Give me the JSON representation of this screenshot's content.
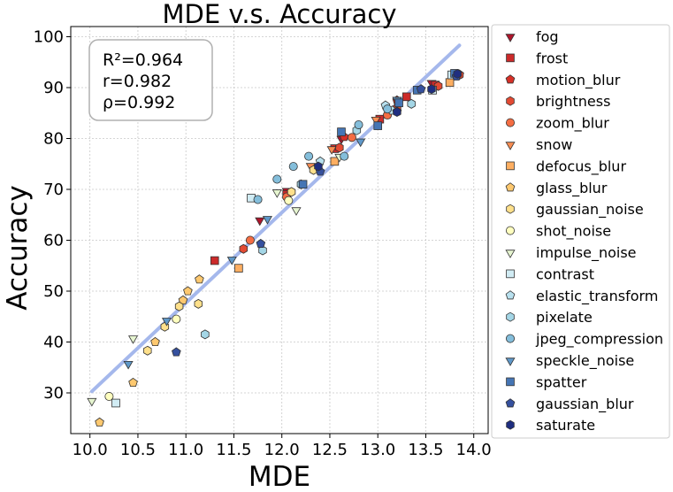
{
  "chart_data": {
    "type": "scatter",
    "title": "MDE  v.s.  Accuracy",
    "xlabel": "MDE",
    "ylabel": "Accuracy",
    "xlim": [
      9.8,
      14.15
    ],
    "ylim": [
      22,
      102
    ],
    "xticks": [
      "10.0",
      "10.5",
      "11.0",
      "11.5",
      "12.0",
      "12.5",
      "13.0",
      "13.5",
      "14.0"
    ],
    "yticks": [
      "30",
      "40",
      "50",
      "60",
      "70",
      "80",
      "90",
      "100"
    ],
    "grid": true,
    "legend_position": "outside-right",
    "stats": [
      "R²=0.964",
      "r=0.982",
      "ρ=0.992"
    ],
    "fit_line": {
      "x": [
        10.02,
        13.85
      ],
      "y": [
        30.3,
        98.3
      ],
      "color": "#a5b8ec"
    },
    "series": [
      {
        "name": "fog",
        "marker": "triangle-down",
        "color": "#b0152b",
        "points": [
          [
            11.77,
            64.0
          ],
          [
            12.05,
            69.8
          ],
          [
            12.62,
            80.0
          ],
          [
            13.0,
            83.8
          ],
          [
            13.56,
            91.0
          ]
        ]
      },
      {
        "name": "frost",
        "marker": "square",
        "color": "#cc2a2a",
        "points": [
          [
            11.3,
            56.0
          ],
          [
            12.05,
            69.0
          ],
          [
            12.55,
            78.0
          ],
          [
            13.02,
            83.8
          ],
          [
            13.3,
            88.2
          ],
          [
            13.6,
            90.5
          ]
        ]
      },
      {
        "name": "motion_blur",
        "marker": "pentagon",
        "color": "#d73027",
        "points": [
          [
            12.65,
            80.3
          ],
          [
            13.2,
            87.5
          ],
          [
            13.85,
            92.6
          ]
        ]
      },
      {
        "name": "brightness",
        "marker": "hexagon",
        "color": "#e34a33",
        "points": [
          [
            11.6,
            58.3
          ],
          [
            12.6,
            78.2
          ],
          [
            13.2,
            86.0
          ],
          [
            13.63,
            90.3
          ],
          [
            13.85,
            92.5
          ]
        ]
      },
      {
        "name": "zoom_blur",
        "marker": "circle",
        "color": "#f46d43",
        "points": [
          [
            11.67,
            60.0
          ],
          [
            12.05,
            68.5
          ],
          [
            12.73,
            80.2
          ],
          [
            13.1,
            84.6
          ]
        ]
      },
      {
        "name": "snow",
        "marker": "triangle-down",
        "color": "#f88d52",
        "points": [
          [
            12.3,
            74.7
          ],
          [
            12.52,
            78.0
          ],
          [
            12.98,
            83.8
          ]
        ]
      },
      {
        "name": "defocus_blur",
        "marker": "square",
        "color": "#fdae61",
        "points": [
          [
            11.55,
            54.5
          ],
          [
            12.55,
            75.5
          ],
          [
            13.75,
            91.0
          ]
        ]
      },
      {
        "name": "glass_blur",
        "marker": "pentagon",
        "color": "#fdc86f",
        "points": [
          [
            10.1,
            24.2
          ],
          [
            10.45,
            32.0
          ],
          [
            10.68,
            40.0
          ],
          [
            10.97,
            48.2
          ],
          [
            11.02,
            50.0
          ],
          [
            11.14,
            52.3
          ]
        ]
      },
      {
        "name": "gaussian_noise",
        "marker": "hexagon",
        "color": "#fee08b",
        "points": [
          [
            10.6,
            38.3
          ],
          [
            10.78,
            43.0
          ],
          [
            10.93,
            47.0
          ],
          [
            11.13,
            47.5
          ],
          [
            12.1,
            69.5
          ],
          [
            12.33,
            73.8
          ]
        ]
      },
      {
        "name": "shot_noise",
        "marker": "circle",
        "color": "#ffffbf",
        "points": [
          [
            10.2,
            29.3
          ],
          [
            10.9,
            44.5
          ],
          [
            12.07,
            67.8
          ]
        ]
      },
      {
        "name": "impulse_noise",
        "marker": "triangle-down",
        "color": "#e6f5d0",
        "points": [
          [
            10.02,
            28.5
          ],
          [
            10.45,
            40.8
          ],
          [
            11.95,
            69.5
          ],
          [
            12.15,
            66.0
          ],
          [
            12.6,
            76.5
          ]
        ]
      },
      {
        "name": "contrast",
        "marker": "square",
        "color": "#d1ecf4",
        "points": [
          [
            10.27,
            28.0
          ],
          [
            11.68,
            68.3
          ],
          [
            13.57,
            89.5
          ],
          [
            13.77,
            92.5
          ]
        ]
      },
      {
        "name": "elastic_transform",
        "marker": "pentagon",
        "color": "#b8e0ee",
        "points": [
          [
            12.4,
            75.5
          ],
          [
            13.08,
            86.5
          ],
          [
            13.15,
            85.5
          ]
        ]
      },
      {
        "name": "pixelate",
        "marker": "hexagon",
        "color": "#a4d6e6",
        "points": [
          [
            11.2,
            41.5
          ],
          [
            11.8,
            58.0
          ],
          [
            12.2,
            71.0
          ],
          [
            12.78,
            81.6
          ],
          [
            13.35,
            86.8
          ]
        ]
      },
      {
        "name": "jpeg_compression",
        "marker": "circle",
        "color": "#84bedb",
        "points": [
          [
            11.75,
            68.0
          ],
          [
            11.95,
            72.0
          ],
          [
            12.12,
            74.5
          ],
          [
            12.28,
            76.5
          ],
          [
            12.65,
            76.5
          ],
          [
            12.8,
            82.7
          ],
          [
            13.1,
            85.8
          ]
        ]
      },
      {
        "name": "speckle_noise",
        "marker": "triangle-down",
        "color": "#5f98c9",
        "points": [
          [
            10.4,
            35.8
          ],
          [
            10.8,
            44.3
          ],
          [
            11.48,
            56.3
          ],
          [
            11.85,
            64.3
          ],
          [
            12.82,
            79.5
          ],
          [
            13.2,
            87.7
          ]
        ]
      },
      {
        "name": "spatter",
        "marker": "square",
        "color": "#4575b4",
        "points": [
          [
            12.22,
            71.0
          ],
          [
            12.62,
            81.3
          ],
          [
            13.0,
            82.5
          ],
          [
            13.22,
            87.0
          ],
          [
            13.41,
            89.5
          ],
          [
            13.8,
            92.8
          ]
        ]
      },
      {
        "name": "gaussian_blur",
        "marker": "pentagon",
        "color": "#35509e",
        "points": [
          [
            10.9,
            38.0
          ],
          [
            11.78,
            59.3
          ],
          [
            12.4,
            73.5
          ],
          [
            13.2,
            85.3
          ],
          [
            13.45,
            89.7
          ],
          [
            13.82,
            92.2
          ]
        ]
      },
      {
        "name": "saturate",
        "marker": "hexagon",
        "color": "#1f2e80",
        "points": [
          [
            12.38,
            74.5
          ],
          [
            13.2,
            85.2
          ],
          [
            13.56,
            89.7
          ],
          [
            13.83,
            92.7
          ]
        ]
      }
    ]
  }
}
